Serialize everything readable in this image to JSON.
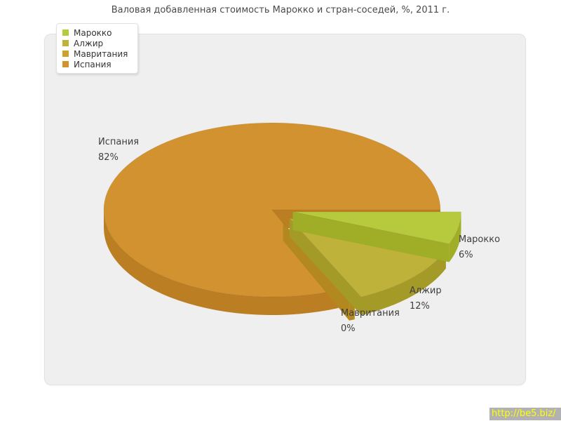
{
  "title": "Валовая добавленная стоимость Марокко и стран-соседей, %, 2011 г.",
  "watermark": {
    "text": "http://be5.biz/",
    "bg": "#b2b2b2",
    "color": "#ffff00"
  },
  "chart_data": {
    "type": "pie",
    "three_d": true,
    "title": "Валовая добавленная стоимость Марокко и стран-соседей, %, 2011 г.",
    "unit": "%",
    "year": "2011",
    "categories": [
      "Марокко",
      "Алжир",
      "Мавритания",
      "Испания"
    ],
    "values": [
      6,
      12,
      0,
      82
    ],
    "value_labels": [
      "6%",
      "12%",
      "0%",
      "82%"
    ],
    "exploded": [
      true,
      true,
      true,
      false
    ],
    "colors": {
      "top": [
        "#b7ca3d",
        "#bfb23a",
        "#cfa02c",
        "#d2922f"
      ],
      "side": [
        "#9fad27",
        "#a49a28",
        "#b3881f",
        "#bb7e22"
      ]
    },
    "legend": {
      "position": "top-left",
      "entries": [
        "Марокко",
        "Алжир",
        "Мавритания",
        "Испания"
      ]
    }
  }
}
